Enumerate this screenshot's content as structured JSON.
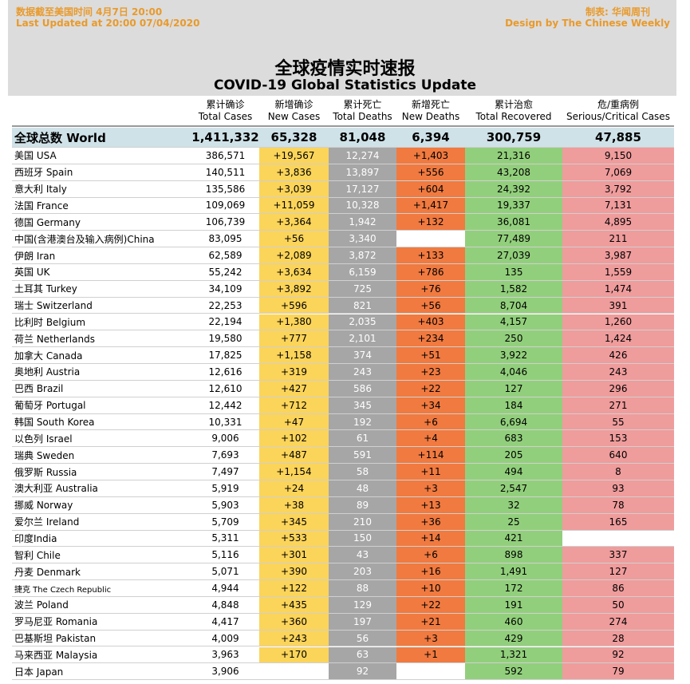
{
  "header": {
    "update_zh": "数据截至美国时间 4月7日 20:00",
    "update_en": "Last Updated at 20:00 07/04/2020",
    "credit_zh": "制表: 华闻周刊",
    "credit_en": "Design by The Chinese Weekly",
    "title": "全球疫情实时速报",
    "subtitle": "COVID-19 Global Statistics Update"
  },
  "table": {
    "columns": [
      {
        "zh": "累计确诊",
        "en": "Total Cases"
      },
      {
        "zh": "新增确诊",
        "en": "New Cases"
      },
      {
        "zh": "累计死亡",
        "en": "Total Deaths"
      },
      {
        "zh": "新增死亡",
        "en": "New Deaths"
      },
      {
        "zh": "累计治愈",
        "en": "Total Recovered"
      },
      {
        "zh": "危/重病例",
        "en": "Serious/Critical Cases"
      }
    ],
    "world": [
      "全球总数 World",
      "1,411,332",
      "65,328",
      "81,048",
      "6,394",
      "300,759",
      "47,885"
    ],
    "rows": [
      [
        "美国 USA",
        "386,571",
        "+19,567",
        "12,274",
        "+1,403",
        "21,316",
        "9,150"
      ],
      [
        "西班牙 Spain",
        "140,511",
        "+3,836",
        "13,897",
        "+556",
        "43,208",
        "7,069"
      ],
      [
        "意大利 Italy",
        "135,586",
        "+3,039",
        "17,127",
        "+604",
        "24,392",
        "3,792"
      ],
      [
        "法国 France",
        "109,069",
        "+11,059",
        "10,328",
        "+1,417",
        "19,337",
        "7,131"
      ],
      [
        "德国 Germany",
        "106,739",
        "+3,364",
        "1,942",
        "+132",
        "36,081",
        "4,895"
      ],
      [
        "中国(含港澳台及输入病例)China",
        "83,095",
        "+56",
        "3,340",
        null,
        "77,489",
        "211"
      ],
      [
        "伊朗 Iran",
        "62,589",
        "+2,089",
        "3,872",
        "+133",
        "27,039",
        "3,987"
      ],
      [
        "英国 UK",
        "55,242",
        "+3,634",
        "6,159",
        "+786",
        "135",
        "1,559"
      ],
      [
        "土耳其 Turkey",
        "34,109",
        "+3,892",
        "725",
        "+76",
        "1,582",
        "1,474"
      ],
      [
        "瑞士 Switzerland",
        "22,253",
        "+596",
        "821",
        "+56",
        "8,704",
        "391"
      ],
      [
        "比利时 Belgium",
        "22,194",
        "+1,380",
        "2,035",
        "+403",
        "4,157",
        "1,260"
      ],
      [
        "荷兰 Netherlands",
        "19,580",
        "+777",
        "2,101",
        "+234",
        "250",
        "1,424"
      ],
      [
        "加拿大 Canada",
        "17,825",
        "+1,158",
        "374",
        "+51",
        "3,922",
        "426"
      ],
      [
        "奥地利 Austria",
        "12,616",
        "+319",
        "243",
        "+23",
        "4,046",
        "243"
      ],
      [
        "巴西 Brazil",
        "12,610",
        "+427",
        "586",
        "+22",
        "127",
        "296"
      ],
      [
        "葡萄牙 Portugal",
        "12,442",
        "+712",
        "345",
        "+34",
        "184",
        "271"
      ],
      [
        "韩国 South Korea",
        "10,331",
        "+47",
        "192",
        "+6",
        "6,694",
        "55"
      ],
      [
        "以色列 Israel",
        "9,006",
        "+102",
        "61",
        "+4",
        "683",
        "153"
      ],
      [
        "瑞典 Sweden",
        "7,693",
        "+487",
        "591",
        "+114",
        "205",
        "640"
      ],
      [
        "俄罗斯 Russia",
        "7,497",
        "+1,154",
        "58",
        "+11",
        "494",
        "8"
      ],
      [
        "澳大利亚 Australia",
        "5,919",
        "+24",
        "48",
        "+3",
        "2,547",
        "93"
      ],
      [
        "挪威 Norway",
        "5,903",
        "+38",
        "89",
        "+13",
        "32",
        "78"
      ],
      [
        "爱尔兰 Ireland",
        "5,709",
        "+345",
        "210",
        "+36",
        "25",
        "165"
      ],
      [
        "印度India",
        "5,311",
        "+533",
        "150",
        "+14",
        "421",
        null
      ],
      [
        "智利 Chile",
        "5,116",
        "+301",
        "43",
        "+6",
        "898",
        "337"
      ],
      [
        "丹麦 Denmark",
        "5,071",
        "+390",
        "203",
        "+16",
        "1,491",
        "127"
      ],
      [
        "捷克 The Czech Republic",
        "4,944",
        "+122",
        "88",
        "+10",
        "172",
        "86"
      ],
      [
        "波兰 Poland",
        "4,848",
        "+435",
        "129",
        "+22",
        "191",
        "50"
      ],
      [
        "罗马尼亚 Romania",
        "4,417",
        "+360",
        "197",
        "+21",
        "460",
        "274"
      ],
      [
        "巴基斯坦 Pakistan",
        "4,009",
        "+243",
        "56",
        "+3",
        "429",
        "28"
      ],
      [
        "马来西亚 Malaysia",
        "3,963",
        "+170",
        "63",
        "+1",
        "1,321",
        "92"
      ],
      [
        "日本 Japan",
        "3,906",
        null,
        "92",
        null,
        "592",
        "79"
      ]
    ]
  }
}
